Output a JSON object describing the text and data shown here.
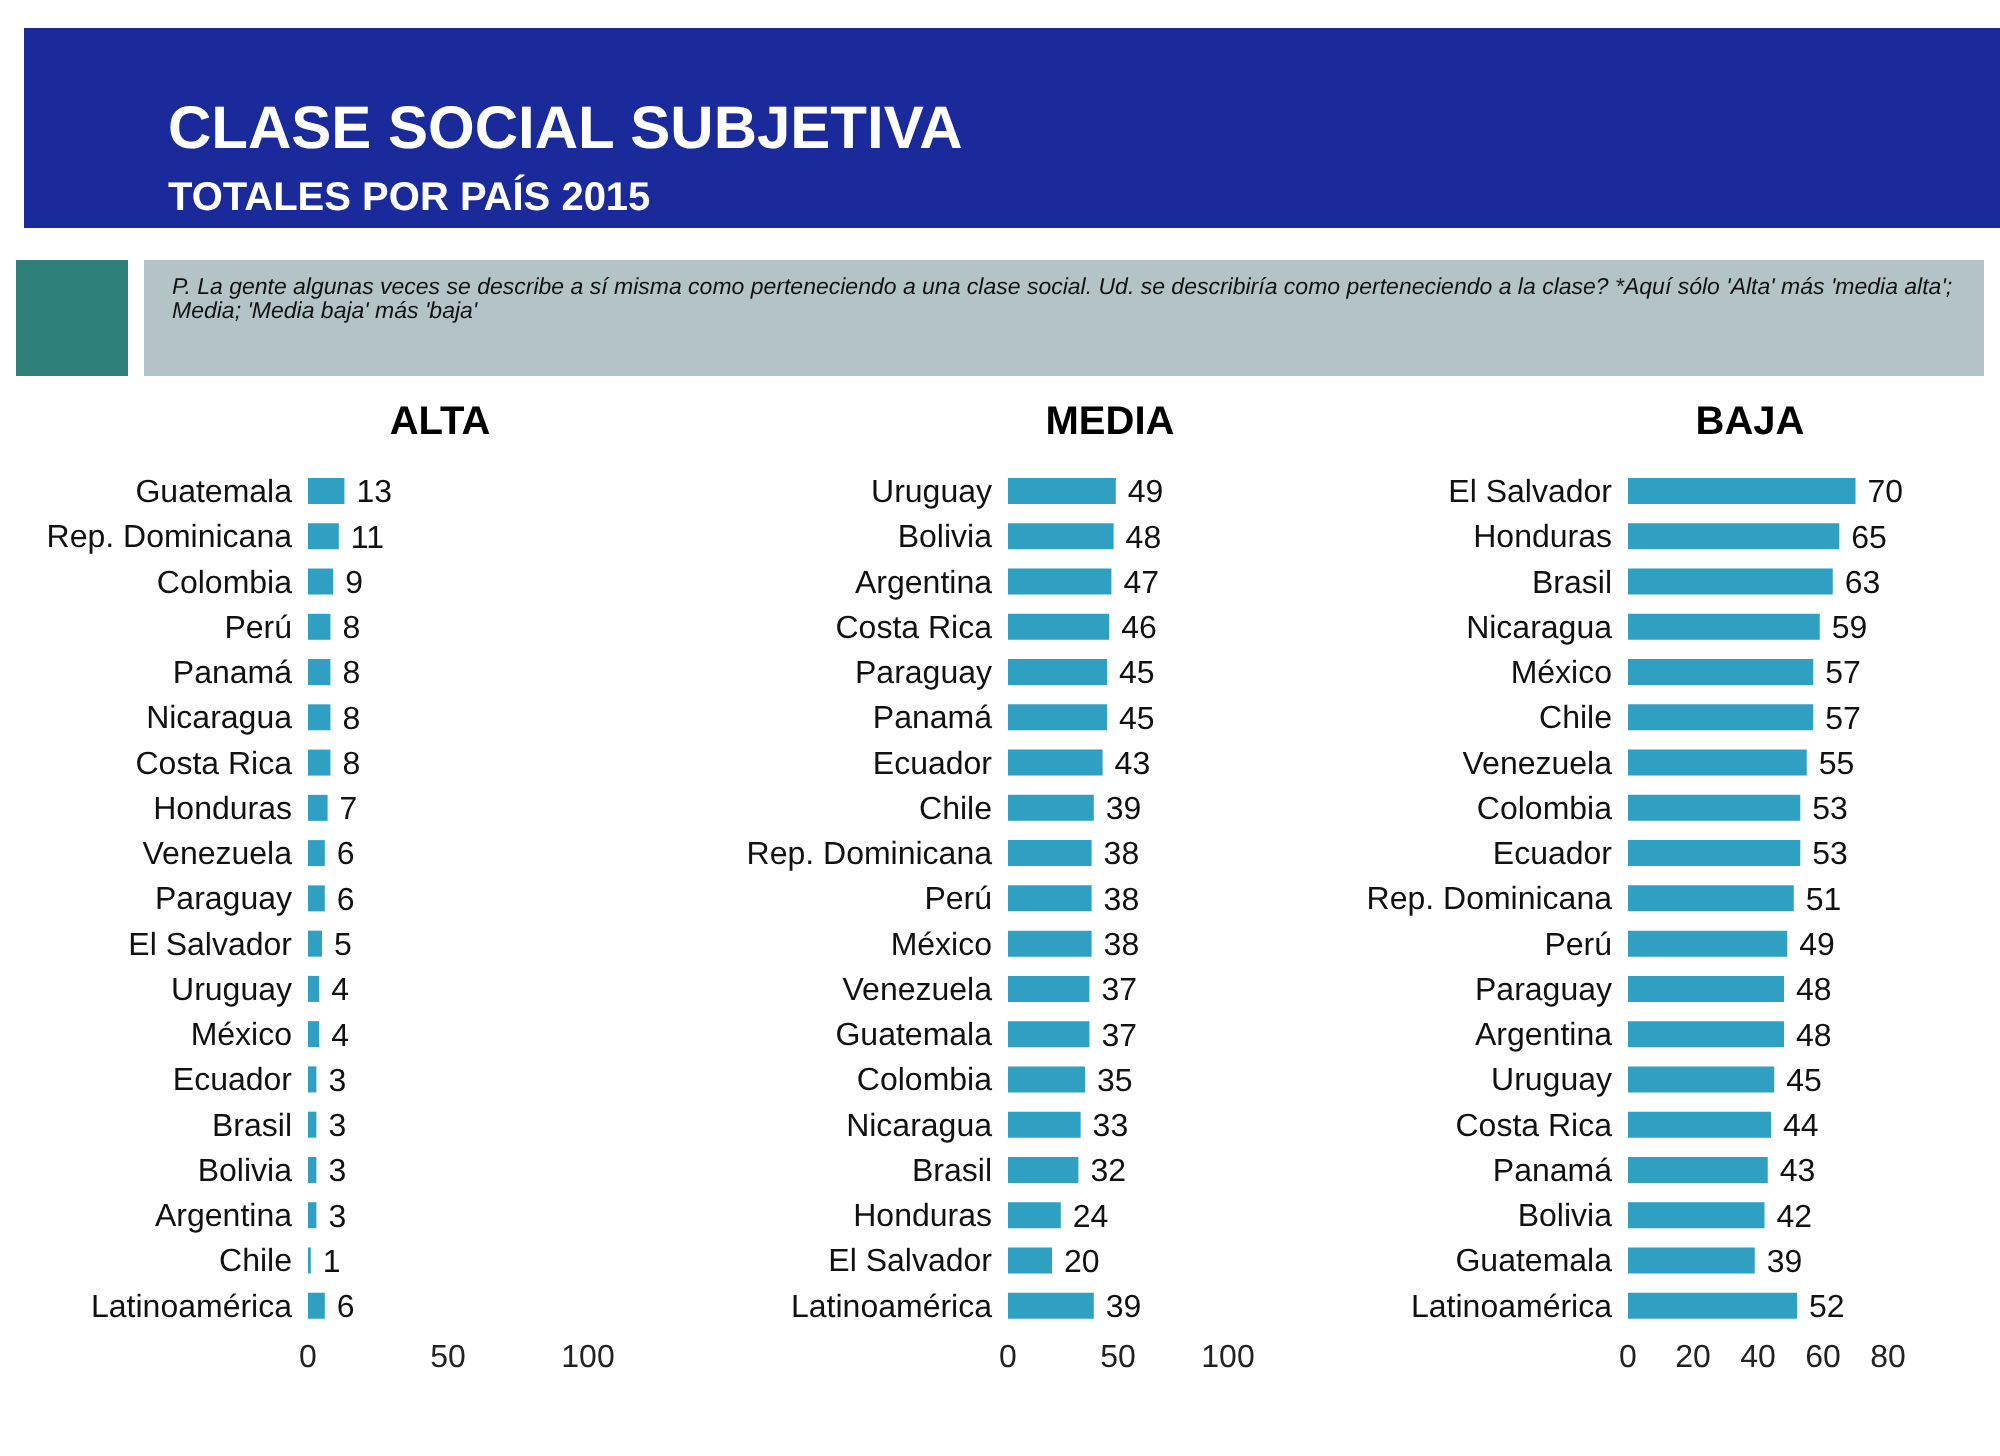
{
  "chart_data": [
    {
      "type": "bar",
      "orientation": "horizontal",
      "title": "CLASE SOCIAL SUBJETIVA",
      "subtitle": "TOTALES POR PAÍS 2015",
      "annotations": [
        "P. La gente algunas veces se describe a sí misma como perteneciendo a una clase social. Ud. se describiría como perteneciendo a la clase? *Aquí sólo 'Alta' más 'media alta'; Media; 'Media baja' más 'baja'"
      ],
      "xlabel": "ALTA",
      "categories": [
        "Guatemala",
        "Rep. Dominicana",
        "Colombia",
        "Perú",
        "Panamá",
        "Nicaragua",
        "Costa Rica",
        "Honduras",
        "Venezuela",
        "Paraguay",
        "El Salvador",
        "Uruguay",
        "México",
        "Ecuador",
        "Brasil",
        "Bolivia",
        "Argentina",
        "Chile",
        "Latinoamérica"
      ],
      "values": [
        13,
        11,
        9,
        8,
        8,
        8,
        8,
        7,
        6,
        6,
        5,
        4,
        4,
        3,
        3,
        3,
        3,
        1,
        6
      ],
      "color": "#2f9fc2",
      "xlim": [
        0,
        100
      ],
      "xticks": [
        0,
        50,
        100
      ],
      "data_labels": true
    },
    {
      "type": "bar",
      "orientation": "horizontal",
      "xlabel": "MEDIA",
      "categories": [
        "Uruguay",
        "Bolivia",
        "Argentina",
        "Costa Rica",
        "Paraguay",
        "Panamá",
        "Ecuador",
        "Chile",
        "Rep. Dominicana",
        "Perú",
        "México",
        "Venezuela",
        "Guatemala",
        "Colombia",
        "Nicaragua",
        "Brasil",
        "Honduras",
        "El Salvador",
        "Latinoamérica"
      ],
      "values": [
        49,
        48,
        47,
        46,
        45,
        45,
        43,
        39,
        38,
        38,
        38,
        37,
        37,
        35,
        33,
        32,
        24,
        20,
        39
      ],
      "color": "#2f9fc2",
      "xlim": [
        0,
        100
      ],
      "xticks": [
        0,
        50,
        100
      ],
      "data_labels": true
    },
    {
      "type": "bar",
      "orientation": "horizontal",
      "xlabel": "BAJA",
      "categories": [
        "El Salvador",
        "Honduras",
        "Brasil",
        "Nicaragua",
        "México",
        "Chile",
        "Venezuela",
        "Colombia",
        "Ecuador",
        "Rep. Dominicana",
        "Perú",
        "Paraguay",
        "Argentina",
        "Uruguay",
        "Costa Rica",
        "Panamá",
        "Bolivia",
        "Guatemala",
        "Latinoamérica"
      ],
      "values": [
        70,
        65,
        63,
        59,
        57,
        57,
        55,
        53,
        53,
        51,
        49,
        48,
        48,
        45,
        44,
        43,
        42,
        39,
        52
      ],
      "color": "#2f9fc2",
      "xlim": [
        0,
        80
      ],
      "xticks": [
        0,
        20,
        40,
        60,
        80
      ],
      "data_labels": true
    }
  ]
}
